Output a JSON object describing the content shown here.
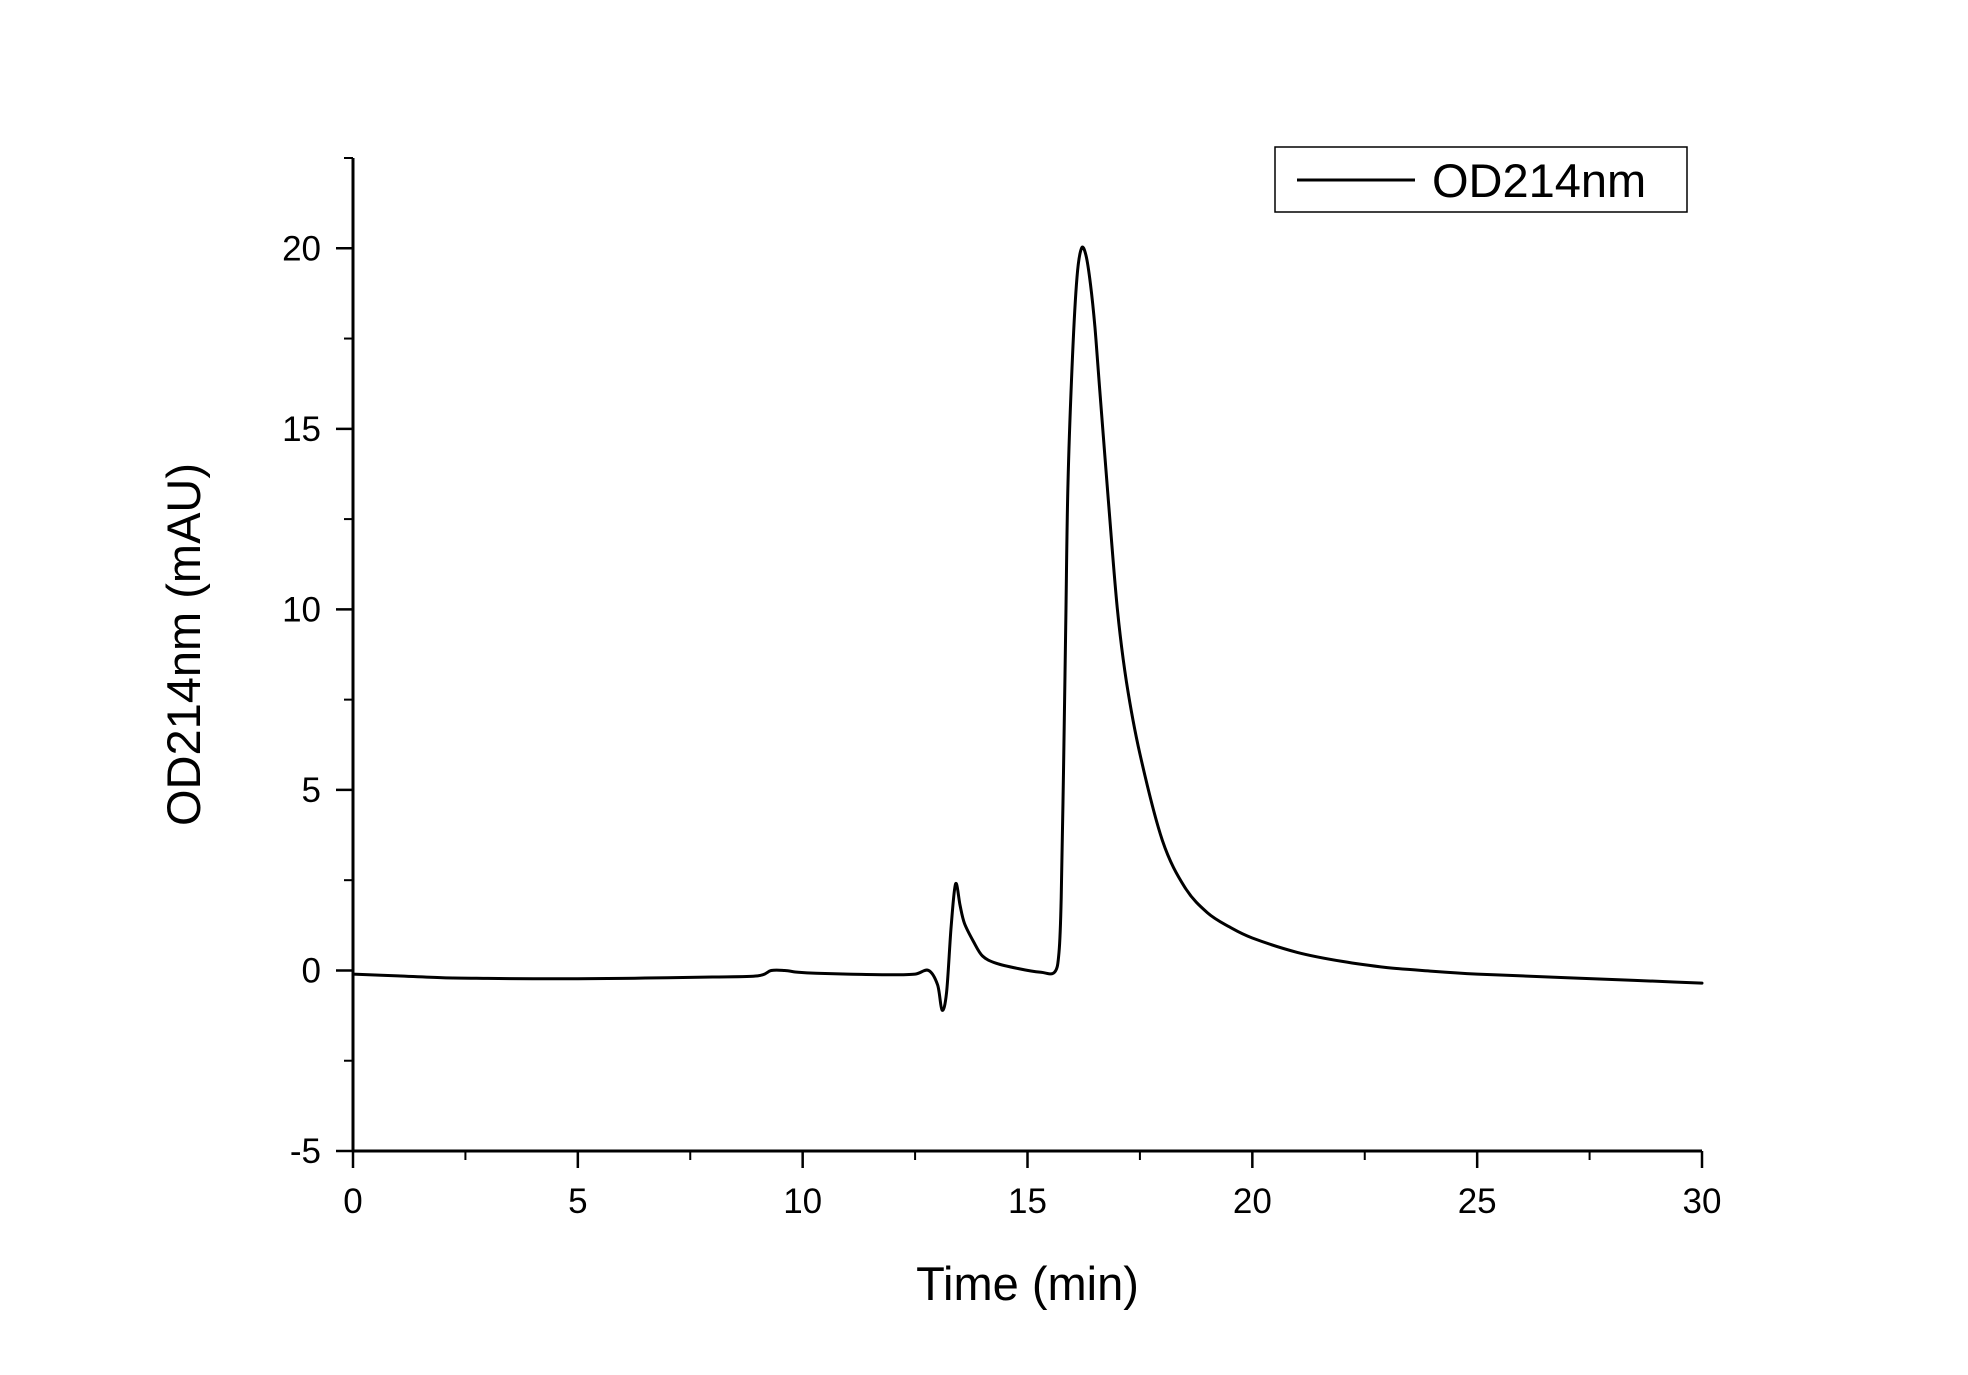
{
  "chart_data": {
    "type": "line",
    "xlabel": "Time (min)",
    "ylabel": "OD214nm (mAU)",
    "xlim": [
      0,
      30
    ],
    "ylim": [
      -5,
      22.5
    ],
    "xticks": [
      0,
      5,
      10,
      15,
      20,
      25,
      30
    ],
    "yticks": [
      -5,
      0,
      5,
      10,
      15,
      20
    ],
    "grid": false,
    "legend": {
      "position": "top-right"
    },
    "colors": {
      "line": "#000000"
    },
    "series": [
      {
        "name": "OD214nm",
        "x": [
          0,
          1,
          2,
          3,
          4,
          5,
          6,
          7,
          8,
          9.0,
          9.3,
          9.6,
          9.9,
          10.3,
          11,
          12,
          12.5,
          12.8,
          13.0,
          13.1,
          13.2,
          13.3,
          13.4,
          13.5,
          13.6,
          13.8,
          14.0,
          14.3,
          14.8,
          15.3,
          15.6,
          15.7,
          15.75,
          15.8,
          15.85,
          15.9,
          16.0,
          16.1,
          16.2,
          16.3,
          16.4,
          16.5,
          16.6,
          16.8,
          17.0,
          17.2,
          17.5,
          18.0,
          18.5,
          19.0,
          19.5,
          20,
          21,
          22,
          23,
          24,
          25,
          26,
          27,
          28,
          29,
          30
        ],
        "y": [
          -0.1,
          -0.15,
          -0.2,
          -0.22,
          -0.23,
          -0.23,
          -0.22,
          -0.2,
          -0.18,
          -0.15,
          0.0,
          0.0,
          -0.05,
          -0.08,
          -0.1,
          -0.12,
          -0.1,
          0.0,
          -0.4,
          -1.1,
          -0.6,
          1.2,
          2.4,
          1.8,
          1.3,
          0.8,
          0.4,
          0.2,
          0.05,
          -0.05,
          -0.05,
          0.5,
          2.0,
          5.5,
          9.5,
          13.5,
          17.0,
          19.2,
          20.0,
          19.8,
          19.0,
          17.8,
          16.2,
          13.0,
          10.0,
          8.0,
          6.0,
          3.6,
          2.3,
          1.6,
          1.2,
          0.9,
          0.5,
          0.25,
          0.08,
          -0.02,
          -0.1,
          -0.15,
          -0.2,
          -0.25,
          -0.3,
          -0.35
        ]
      }
    ]
  }
}
